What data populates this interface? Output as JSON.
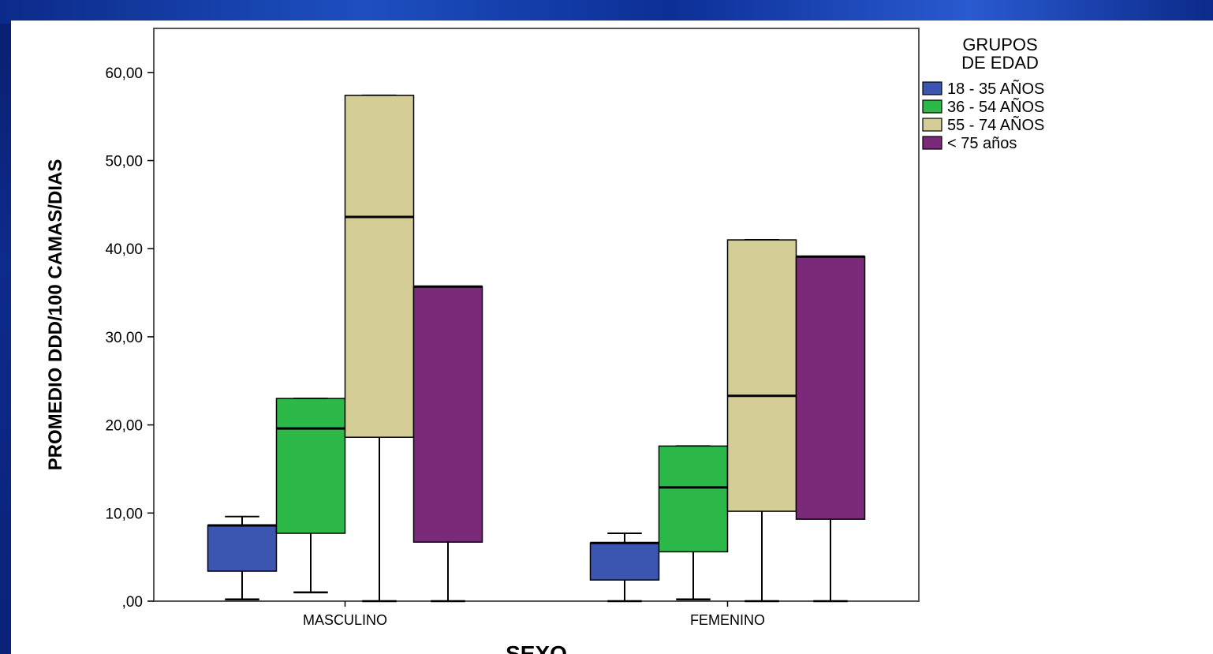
{
  "chart_data": {
    "type": "boxplot",
    "xlabel": "SEXO",
    "ylabel": "PROMEDIO DDD/100 CAMAS/DIAS",
    "ylim": [
      0,
      65
    ],
    "yticks": [
      0,
      10,
      20,
      30,
      40,
      50,
      60
    ],
    "ytick_labels": [
      ",00",
      "10,00",
      "20,00",
      "30,00",
      "40,00",
      "50,00",
      "60,00"
    ],
    "grid": false,
    "legend_title": "GRUPOS DE EDAD",
    "legend_position": "top-right-outside",
    "categories": [
      "MASCULINO",
      "FEMENINO"
    ],
    "series": [
      {
        "name": "18 - 35 AÑOS",
        "color": "#3b55b0",
        "boxes": [
          {
            "min": 0.2,
            "q1": 3.4,
            "median": 8.6,
            "q3": 8.6,
            "max": 9.6
          },
          {
            "min": 0.0,
            "q1": 2.4,
            "median": 6.6,
            "q3": 6.6,
            "max": 7.7
          }
        ]
      },
      {
        "name": "36 - 54 AÑOS",
        "color": "#2db84a",
        "boxes": [
          {
            "min": 1.0,
            "q1": 7.7,
            "median": 19.6,
            "q3": 23.0,
            "max": 23.0
          },
          {
            "min": 0.2,
            "q1": 5.6,
            "median": 12.9,
            "q3": 17.6,
            "max": 17.6
          }
        ]
      },
      {
        "name": "55 - 74 AÑOS",
        "color": "#d4ce96",
        "boxes": [
          {
            "min": 0.0,
            "q1": 18.6,
            "median": 43.6,
            "q3": 57.4,
            "max": 57.4
          },
          {
            "min": 0.0,
            "q1": 10.2,
            "median": 23.3,
            "q3": 41.0,
            "max": 41.0
          }
        ]
      },
      {
        "name": "< 75 años",
        "color": "#7b2a7a",
        "boxes": [
          {
            "min": 0.0,
            "q1": 6.7,
            "median": 35.7,
            "q3": 35.7,
            "max": 35.7
          },
          {
            "min": 0.0,
            "q1": 9.3,
            "median": 39.1,
            "q3": 39.1,
            "max": 39.1
          }
        ]
      }
    ]
  }
}
